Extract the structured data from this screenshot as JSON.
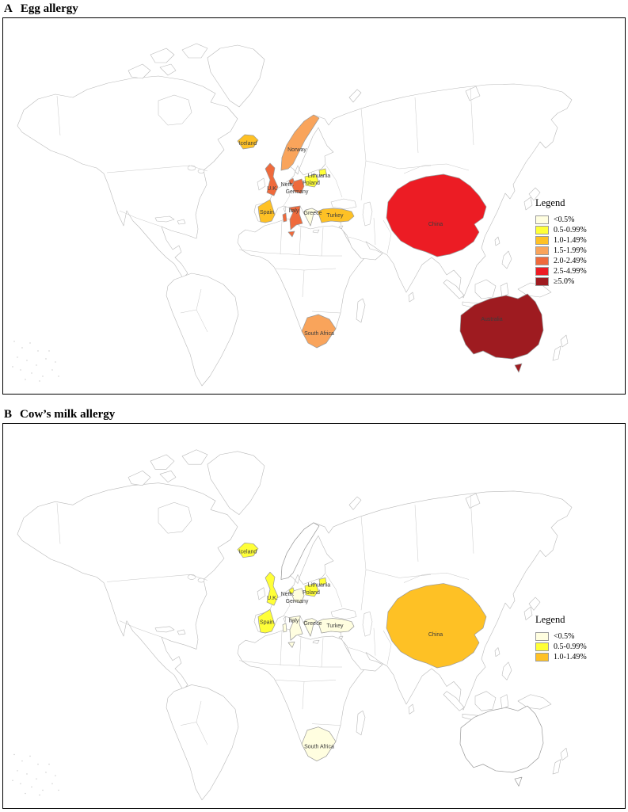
{
  "figure": {
    "panels": [
      {
        "letter": "A",
        "title": "Egg allergy",
        "legend": {
          "title": "Legend",
          "items": [
            {
              "label": "<0.5%",
              "color": "#FFFEE0"
            },
            {
              "label": "0.5-0.99%",
              "color": "#FFFF38"
            },
            {
              "label": "1.0-1.49%",
              "color": "#FEC125"
            },
            {
              "label": "1.5-1.99%",
              "color": "#F9A45B"
            },
            {
              "label": "2.0-2.49%",
              "color": "#EF6A3C"
            },
            {
              "label": "2.5-4.99%",
              "color": "#EC1C24"
            },
            {
              "label": "≥5.0%",
              "color": "#9E1B20"
            }
          ]
        },
        "countries": [
          {
            "id": "iceland",
            "label": "Iceland",
            "category": "1.0-1.49%",
            "color": "#FEC125"
          },
          {
            "id": "norway",
            "label": "Norway",
            "category": "1.5-1.99%",
            "color": "#F9A45B"
          },
          {
            "id": "uk",
            "label": "U.K.",
            "category": "2.0-2.49%",
            "color": "#EF6A3C"
          },
          {
            "id": "netherlands",
            "label": "Neth.",
            "category": "2.0-2.49%",
            "color": "#EF6A3C"
          },
          {
            "id": "germany",
            "label": "Germany",
            "category": "2.0-2.49%",
            "color": "#EF6A3C"
          },
          {
            "id": "lithuania",
            "label": "Lithuania",
            "category": "0.5-0.99%",
            "color": "#FFFF38"
          },
          {
            "id": "poland",
            "label": "Poland",
            "category": "0.5-0.99%",
            "color": "#FFFF38"
          },
          {
            "id": "italy",
            "label": "Italy",
            "category": "2.0-2.49%",
            "color": "#EF6A3C"
          },
          {
            "id": "spain",
            "label": "Spain",
            "category": "1.0-1.49%",
            "color": "#FEC125"
          },
          {
            "id": "greece",
            "label": "Greece",
            "category": "<0.5%",
            "color": "#FFFEE0"
          },
          {
            "id": "turkey",
            "label": "Turkey",
            "category": "1.0-1.49%",
            "color": "#FEC125"
          },
          {
            "id": "china",
            "label": "China",
            "category": "2.5-4.99%",
            "color": "#EC1C24"
          },
          {
            "id": "south-africa",
            "label": "South Africa",
            "category": "1.5-1.99%",
            "color": "#F9A45B"
          },
          {
            "id": "australia",
            "label": "Australia",
            "category": "≥5.0%",
            "color": "#9E1B20"
          }
        ]
      },
      {
        "letter": "B",
        "title": "Cow’s milk allergy",
        "legend": {
          "title": "Legend",
          "items": [
            {
              "label": "<0.5%",
              "color": "#FFFEE0"
            },
            {
              "label": "0.5-0.99%",
              "color": "#FFFF38"
            },
            {
              "label": "1.0-1.49%",
              "color": "#FEC125"
            }
          ]
        },
        "countries": [
          {
            "id": "iceland",
            "label": "Iceland",
            "category": "0.5-0.99%",
            "color": "#FFFF38"
          },
          {
            "id": "uk",
            "label": "U.K.",
            "category": "0.5-0.99%",
            "color": "#FFFF38"
          },
          {
            "id": "netherlands",
            "label": "Neth.",
            "category": "0.5-0.99%",
            "color": "#FFFF38"
          },
          {
            "id": "germany",
            "label": "Germany",
            "category": "<0.5%",
            "color": "#FFFEE0"
          },
          {
            "id": "lithuania",
            "label": "Lithuania",
            "category": "0.5-0.99%",
            "color": "#FFFF38"
          },
          {
            "id": "poland",
            "label": "Poland",
            "category": "0.5-0.99%",
            "color": "#FFFF38"
          },
          {
            "id": "italy",
            "label": "Italy",
            "category": "<0.5%",
            "color": "#FFFEE0"
          },
          {
            "id": "spain",
            "label": "Spain",
            "category": "0.5-0.99%",
            "color": "#FFFF38"
          },
          {
            "id": "greece",
            "label": "Greece",
            "category": "<0.5%",
            "color": "#FFFEE0"
          },
          {
            "id": "turkey",
            "label": "Turkey",
            "category": "<0.5%",
            "color": "#FFFEE0"
          },
          {
            "id": "china",
            "label": "China",
            "category": "1.0-1.49%",
            "color": "#FEC125"
          },
          {
            "id": "south-africa",
            "label": "South Africa",
            "category": "<0.5%",
            "color": "#FFFEE0"
          }
        ]
      }
    ]
  }
}
